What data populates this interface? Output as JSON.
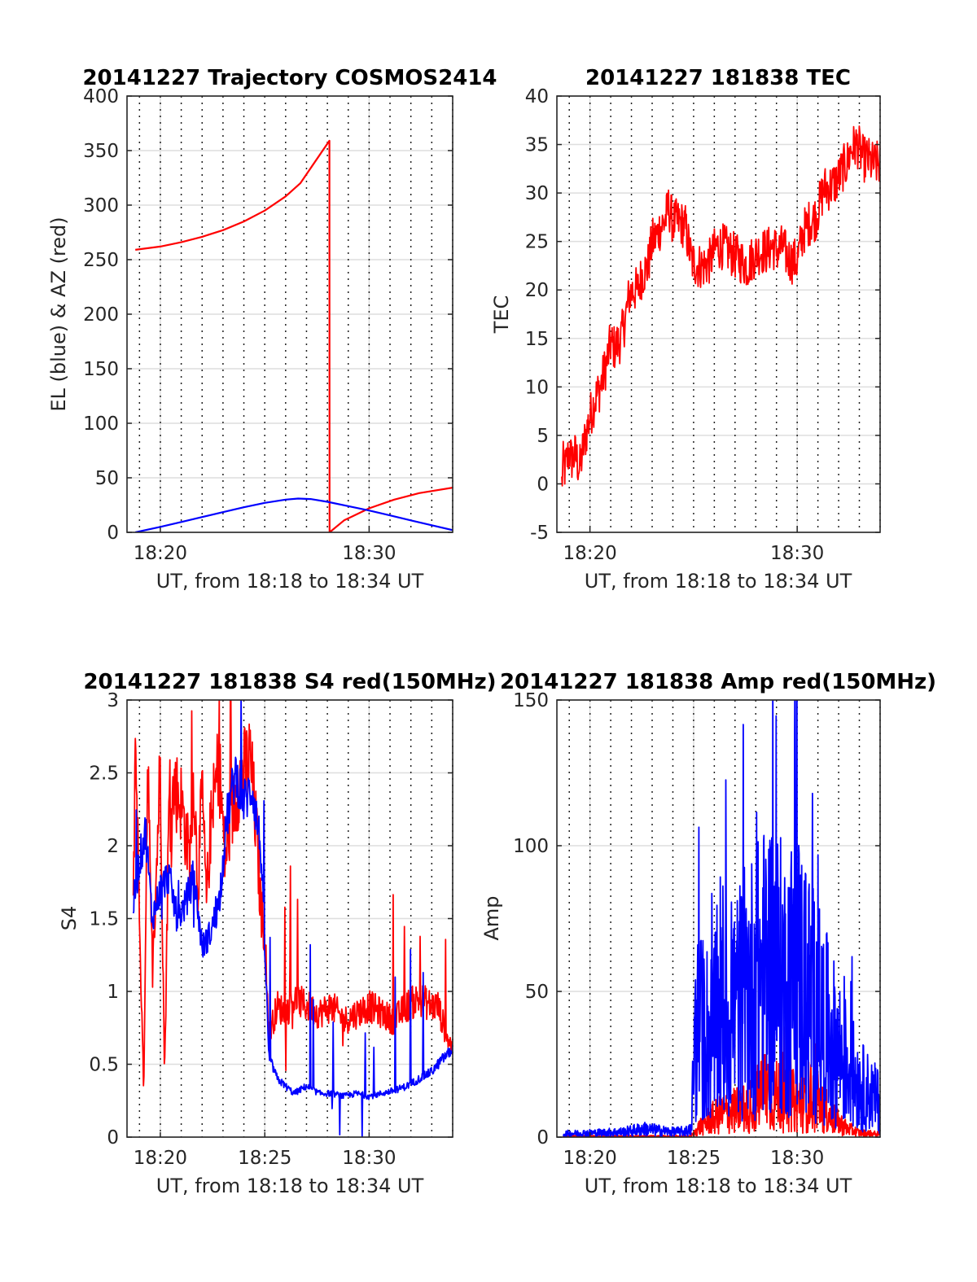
{
  "chart_data": [
    {
      "type": "line",
      "title": "20141227 Trajectory COSMOS2414",
      "xlabel": "UT, from 18:18 to 18:34 UT",
      "ylabel": "EL (blue) & AZ (red)",
      "xlim": [
        18.3067,
        18.5667
      ],
      "ylim": [
        0,
        400
      ],
      "xticks": [
        {
          "value": 18.3333,
          "label": "18:20"
        },
        {
          "value": 18.5,
          "label": "18:30"
        }
      ],
      "yticks": [
        0,
        50,
        100,
        150,
        200,
        250,
        300,
        350,
        400
      ],
      "grid": true,
      "colors": {
        "blue": "#0000ff",
        "red": "#ff0000"
      },
      "series": [
        {
          "color": "red",
          "style": "smooth",
          "x": [
            18.3133,
            18.3333,
            18.35,
            18.3667,
            18.3833,
            18.4,
            18.4167,
            18.4333,
            18.445,
            18.4683,
            18.4684,
            18.48,
            18.5,
            18.52,
            18.54,
            18.5667
          ],
          "y": [
            259,
            262,
            266,
            271,
            277,
            285,
            295,
            308,
            320,
            359,
            0,
            11,
            22,
            30,
            36,
            41
          ]
        },
        {
          "color": "blue",
          "style": "smooth",
          "x": [
            18.3133,
            18.3333,
            18.35,
            18.3667,
            18.3833,
            18.4,
            18.4167,
            18.4333,
            18.4433,
            18.4533,
            18.4667,
            18.4833,
            18.5,
            18.5167,
            18.5333,
            18.55,
            18.5667
          ],
          "y": [
            0,
            5,
            9.5,
            14,
            18.5,
            23,
            27,
            30,
            31,
            30.5,
            28,
            24,
            20,
            15.5,
            11,
            6.5,
            2
          ]
        }
      ]
    },
    {
      "type": "line",
      "title": "20141227 181838 TEC",
      "xlabel": "UT, from 18:18 to 18:34 UT",
      "ylabel": "TEC",
      "xlim": [
        18.3067,
        18.5667
      ],
      "ylim": [
        -5,
        40
      ],
      "xticks": [
        {
          "value": 18.3333,
          "label": "18:20"
        },
        {
          "value": 18.5,
          "label": "18:30"
        }
      ],
      "yticks": [
        -5,
        0,
        5,
        10,
        15,
        20,
        25,
        30,
        35,
        40
      ],
      "grid": true,
      "colors": {
        "red": "#ff0000"
      },
      "series": [
        {
          "color": "red",
          "style": "noisy",
          "noise": 0.45,
          "x": [
            18.3106,
            18.3117,
            18.3133,
            18.3167,
            18.3183,
            18.3217,
            18.325,
            18.3283,
            18.3333,
            18.3383,
            18.3417,
            18.3467,
            18.35,
            18.3533,
            18.3583,
            18.3617,
            18.365,
            18.3683,
            18.3717,
            18.375,
            18.38,
            18.3833,
            18.3867,
            18.39,
            18.3933,
            18.3967,
            18.4,
            18.405,
            18.41,
            18.415,
            18.42,
            18.425,
            18.43,
            18.435,
            18.44,
            18.445,
            18.45,
            18.455,
            18.46,
            18.465,
            18.47,
            18.475,
            18.48,
            18.485,
            18.4883,
            18.4917,
            18.495,
            18.5,
            18.505,
            18.51,
            18.515,
            18.5183,
            18.5217,
            18.525,
            18.53,
            18.5333,
            18.5367,
            18.54,
            18.5433,
            18.5483,
            18.5533,
            18.5567,
            18.56,
            18.5633,
            18.5667
          ],
          "y": [
            0,
            2,
            1.5,
            3.5,
            2.5,
            3,
            1.5,
            4,
            7,
            9,
            10,
            12.5,
            14.5,
            14,
            15,
            17,
            19.5,
            20,
            20,
            21.5,
            22.5,
            25,
            25.5,
            26.5,
            27,
            28.5,
            27,
            27,
            26.5,
            23,
            22.5,
            22.5,
            23,
            24.5,
            24.5,
            24,
            23.5,
            23,
            22.5,
            23.5,
            24,
            24,
            24.5,
            24,
            24.5,
            23.5,
            23,
            23,
            26,
            27,
            27.5,
            29,
            30.5,
            30.5,
            31,
            31.5,
            32.5,
            33,
            34.5,
            35,
            33.5,
            33.5,
            33,
            33,
            33
          ]
        }
      ]
    },
    {
      "type": "line",
      "title": "20141227 181838 S4 red(150MHz)",
      "xlabel": "UT, from 18:18 to 18:34 UT",
      "ylabel": "S4",
      "xlim": [
        18.3067,
        18.5667
      ],
      "ylim": [
        0,
        3
      ],
      "xticks": [
        {
          "value": 18.3333,
          "label": "18:20"
        },
        {
          "value": 18.4167,
          "label": "18:25"
        },
        {
          "value": 18.5,
          "label": "18:30"
        }
      ],
      "yticks": [
        0,
        0.5,
        1,
        1.5,
        2,
        2.5,
        3
      ],
      "grid": true,
      "colors": {
        "blue": "#0000ff",
        "red": "#ff0000"
      },
      "series": [
        {
          "color": "red",
          "style": "noisy",
          "noise": 0.35,
          "clip": true,
          "x": [
            18.3117,
            18.3133,
            18.3167,
            18.32,
            18.3233,
            18.3267,
            18.33,
            18.3333,
            18.3367,
            18.34,
            18.345,
            18.35,
            18.3567,
            18.36,
            18.3633,
            18.3667,
            18.37,
            18.3733,
            18.38,
            18.385,
            18.39,
            18.395,
            18.4,
            18.405,
            18.41,
            18.4133,
            18.4167,
            18.42,
            18.4267,
            18.4333,
            18.44,
            18.45,
            18.46,
            18.47,
            18.48,
            18.49,
            18.5,
            18.51,
            18.52,
            18.53,
            18.54,
            18.55,
            18.555,
            18.56,
            18.5667
          ],
          "y": [
            1.5,
            2.8,
            1.5,
            0.3,
            2.7,
            1.0,
            1.8,
            2.6,
            0.4,
            2.2,
            2.4,
            2.3,
            1.9,
            2.5,
            1.7,
            2.4,
            1.6,
            2.1,
            2.6,
            1.9,
            2.2,
            2.4,
            2.5,
            2.6,
            2.1,
            1.6,
            1.4,
            0.7,
            0.9,
            0.85,
            0.95,
            0.9,
            0.85,
            0.9,
            0.8,
            0.85,
            0.9,
            0.85,
            0.8,
            0.9,
            0.95,
            0.9,
            0.9,
            0.75,
            0.6
          ]
        },
        {
          "color": "blue",
          "style": "noisy",
          "noise": 0.2,
          "clip": true,
          "x": [
            18.3117,
            18.3167,
            18.3217,
            18.3267,
            18.3333,
            18.34,
            18.3467,
            18.3533,
            18.36,
            18.3667,
            18.3733,
            18.38,
            18.3867,
            18.3933,
            18.4,
            18.4067,
            18.4133,
            18.4167,
            18.42,
            18.4267,
            18.4333,
            18.44,
            18.45,
            18.46,
            18.47,
            18.48,
            18.49,
            18.5,
            18.51,
            18.52,
            18.53,
            18.54,
            18.55,
            18.555,
            18.56,
            18.5667
          ],
          "y": [
            1.6,
            1.9,
            2.1,
            1.5,
            1.7,
            1.8,
            1.5,
            1.6,
            1.8,
            1.3,
            1.4,
            1.6,
            2.2,
            2.5,
            2.3,
            2.4,
            2.0,
            1.3,
            0.55,
            0.4,
            0.35,
            0.3,
            0.35,
            0.3,
            0.3,
            0.28,
            0.3,
            0.28,
            0.3,
            0.32,
            0.35,
            0.4,
            0.45,
            0.5,
            0.55,
            0.6
          ]
        }
      ]
    },
    {
      "type": "line",
      "title": "20141227 181838 Amp red(150MHz)",
      "xlabel": "UT, from 18:18 to 18:34 UT",
      "ylabel": "Amp",
      "xlim": [
        18.3067,
        18.5667
      ],
      "ylim": [
        0,
        150
      ],
      "xticks": [
        {
          "value": 18.3333,
          "label": "18:20"
        },
        {
          "value": 18.4167,
          "label": "18:25"
        },
        {
          "value": 18.5,
          "label": "18:30"
        }
      ],
      "yticks": [
        0,
        50,
        100,
        150
      ],
      "grid": true,
      "colors": {
        "blue": "#0000ff",
        "red": "#ff0000"
      },
      "series": [
        {
          "color": "red",
          "style": "spiky",
          "peak": true,
          "x": [
            18.3117,
            18.4133,
            18.4167,
            18.42,
            18.43,
            18.44,
            18.45,
            18.46,
            18.47,
            18.475,
            18.48,
            18.485,
            18.49,
            18.5,
            18.51,
            18.52,
            18.53,
            18.54,
            18.55,
            18.5667
          ],
          "y": [
            0.3,
            0.3,
            1,
            3,
            6,
            8,
            9,
            10,
            14,
            18,
            12,
            15,
            13,
            12,
            14,
            10,
            6,
            3,
            1.5,
            1
          ]
        },
        {
          "color": "blue",
          "style": "spiky",
          "x": [
            18.3117,
            18.34,
            18.36,
            18.3767,
            18.39,
            18.4,
            18.41,
            18.415,
            18.4167,
            18.42,
            18.43,
            18.44,
            18.45,
            18.46,
            18.47,
            18.48,
            18.49,
            18.5,
            18.51,
            18.52,
            18.53,
            18.54,
            18.55,
            18.5667
          ],
          "y": [
            1.2,
            1.5,
            1.8,
            2.8,
            2.2,
            1.8,
            2,
            2.5,
            28,
            38,
            35,
            40,
            45,
            50,
            55,
            60,
            52,
            58,
            48,
            40,
            32,
            25,
            18,
            12
          ]
        }
      ]
    }
  ]
}
